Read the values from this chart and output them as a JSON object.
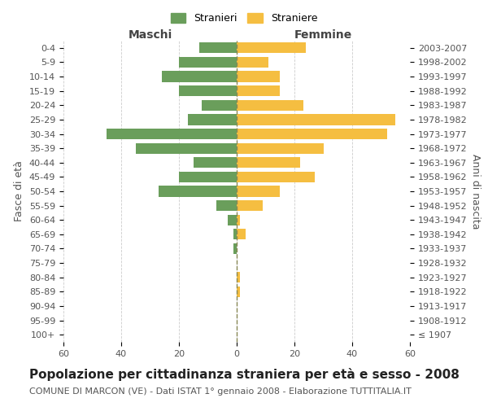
{
  "age_groups": [
    "100+",
    "95-99",
    "90-94",
    "85-89",
    "80-84",
    "75-79",
    "70-74",
    "65-69",
    "60-64",
    "55-59",
    "50-54",
    "45-49",
    "40-44",
    "35-39",
    "30-34",
    "25-29",
    "20-24",
    "15-19",
    "10-14",
    "5-9",
    "0-4"
  ],
  "birth_years": [
    "≤ 1907",
    "1908-1912",
    "1913-1917",
    "1918-1922",
    "1923-1927",
    "1928-1932",
    "1933-1937",
    "1938-1942",
    "1943-1947",
    "1948-1952",
    "1953-1957",
    "1958-1962",
    "1963-1967",
    "1968-1972",
    "1973-1977",
    "1978-1982",
    "1983-1987",
    "1988-1992",
    "1993-1997",
    "1998-2002",
    "2003-2007"
  ],
  "males": [
    0,
    0,
    0,
    0,
    0,
    0,
    1,
    1,
    3,
    7,
    27,
    20,
    15,
    35,
    45,
    17,
    12,
    20,
    26,
    20,
    13
  ],
  "females": [
    0,
    0,
    0,
    1,
    1,
    0,
    0,
    3,
    1,
    9,
    15,
    27,
    22,
    30,
    52,
    55,
    23,
    15,
    15,
    11,
    24
  ],
  "male_color": "#6a9e5b",
  "female_color": "#f5be41",
  "background_color": "#ffffff",
  "grid_color": "#cccccc",
  "title": "Popolazione per cittadinanza straniera per età e sesso - 2008",
  "subtitle": "COMUNE DI MARCON (VE) - Dati ISTAT 1° gennaio 2008 - Elaborazione TUTTITALIA.IT",
  "ylabel_left": "Fasce di età",
  "ylabel_right": "Anni di nascita",
  "legend_male": "Stranieri",
  "legend_female": "Straniere",
  "maschi_label": "Maschi",
  "femmine_label": "Femmine",
  "xlim": 60,
  "title_fontsize": 11,
  "subtitle_fontsize": 8,
  "label_fontsize": 9,
  "tick_fontsize": 8,
  "bar_height": 0.75
}
